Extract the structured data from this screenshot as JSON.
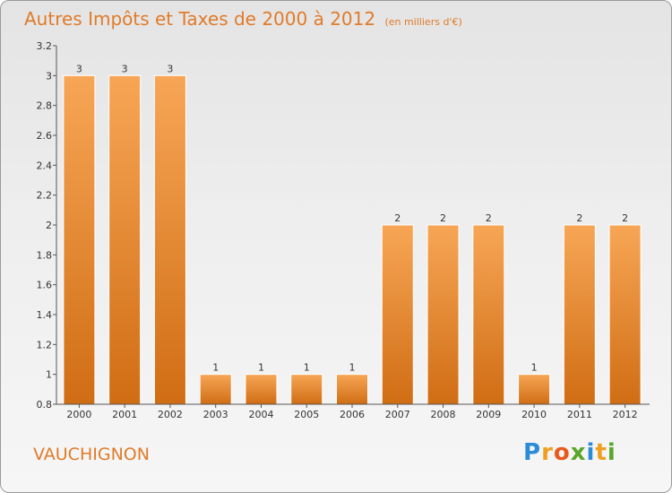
{
  "header": {
    "title": "Autres Impôts et Taxes de 2000 à 2012",
    "subtitle": "(en milliers d'€)"
  },
  "commune": "VAUCHIGNON",
  "logo": {
    "text": "Proxiti",
    "letters": [
      {
        "ch": "P",
        "color": "#2b8bd6"
      },
      {
        "ch": "r",
        "color": "#f0a020"
      },
      {
        "ch": "o",
        "color": "#e85a1e"
      },
      {
        "ch": "x",
        "color": "#5aa62b"
      },
      {
        "ch": "i",
        "color": "#2b8bd6"
      },
      {
        "ch": "t",
        "color": "#f0a020"
      },
      {
        "ch": "i",
        "color": "#5aa62b"
      }
    ]
  },
  "chart_data": {
    "type": "bar",
    "categories": [
      "2000",
      "2001",
      "2002",
      "2003",
      "2004",
      "2005",
      "2006",
      "2007",
      "2008",
      "2009",
      "2010",
      "2011",
      "2012"
    ],
    "values": [
      3,
      3,
      3,
      1,
      1,
      1,
      1,
      2,
      2,
      2,
      1,
      2,
      2
    ],
    "data_labels": [
      "3",
      "3",
      "3",
      "1",
      "1",
      "1",
      "1",
      "2",
      "2",
      "2",
      "1",
      "2",
      "2"
    ],
    "ylim": [
      0.8,
      3.2
    ],
    "yticks": [
      "0.8",
      "1",
      "1.2",
      "1.4",
      "1.6",
      "1.8",
      "2",
      "2.2",
      "2.4",
      "2.6",
      "2.8",
      "3",
      "3.2"
    ],
    "xlabel": "",
    "ylabel": "",
    "grid": false,
    "bar_color_top": "#f7a656",
    "bar_color_bottom": "#d06d14"
  }
}
